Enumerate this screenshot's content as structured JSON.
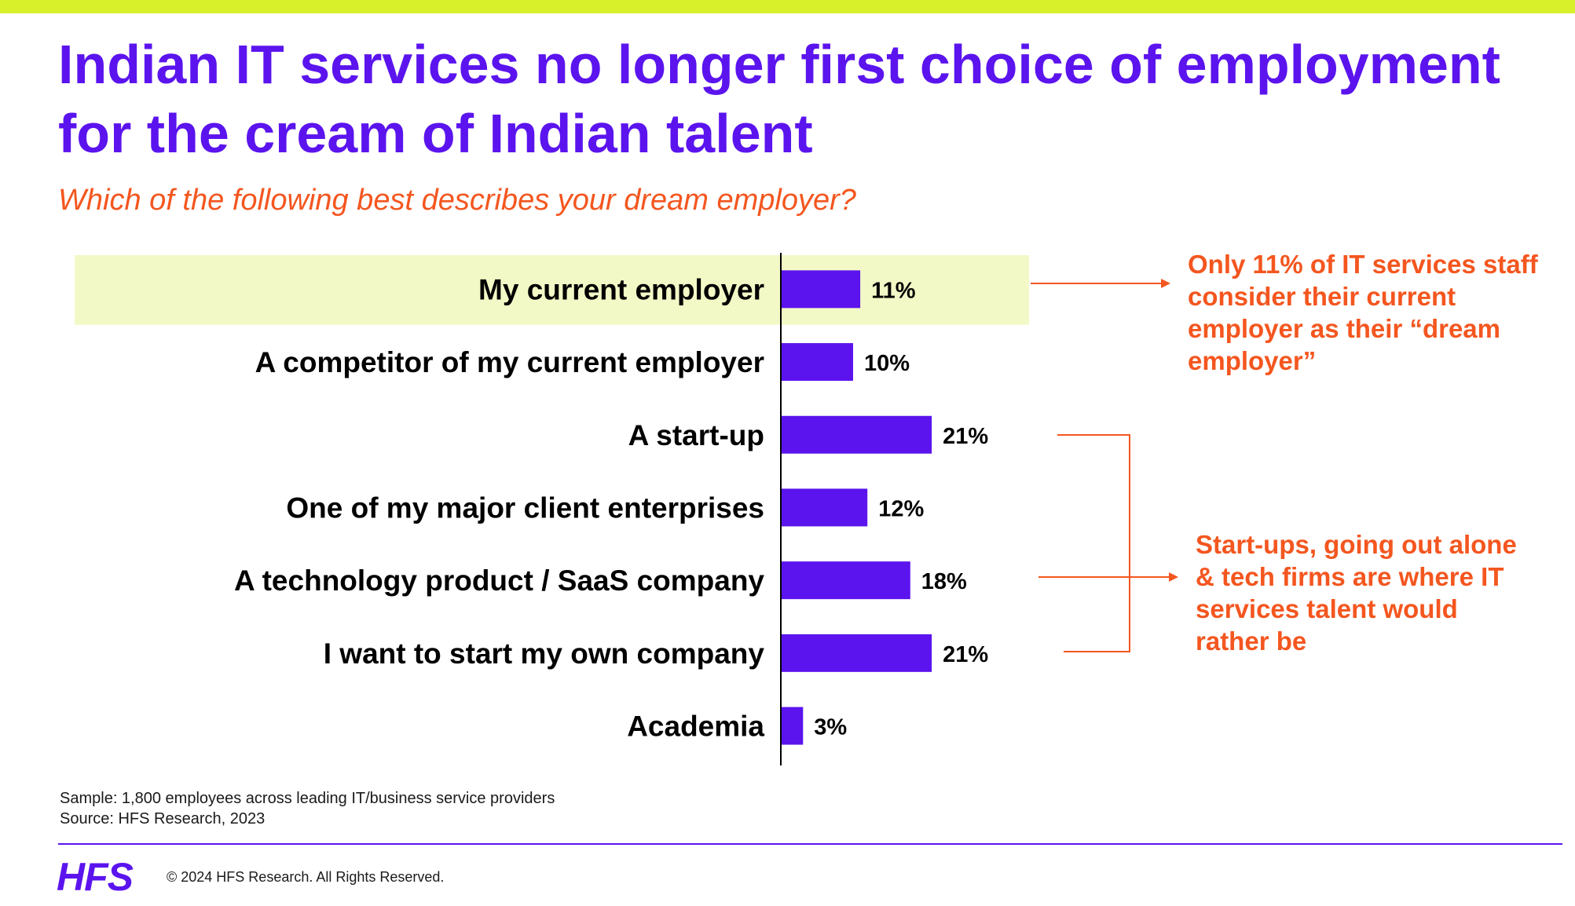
{
  "header": {
    "title": "Indian IT services no longer first choice of employment for the cream of Indian talent",
    "question": "Which of the following best describes your dream employer?"
  },
  "chart_data": {
    "type": "bar",
    "orientation": "horizontal",
    "categories": [
      "My current employer",
      "A competitor of my current employer",
      "A start-up",
      "One of my major client enterprises",
      "A technology product / SaaS company",
      "I want to start my own company",
      "Academia"
    ],
    "values": [
      11,
      10,
      21,
      12,
      18,
      21,
      3
    ],
    "value_labels": [
      "11%",
      "10%",
      "21%",
      "12%",
      "18%",
      "21%",
      "3%"
    ],
    "unit": "%",
    "xlim": [
      0,
      30
    ],
    "highlighted_category": "My current employer",
    "grid": false,
    "legend": "none",
    "bar_color": "#5b14ee",
    "highlight_color": "#f3f9c6"
  },
  "callouts": {
    "first": "Only 11% of IT services staff consider their current employer as their “dream employer”",
    "second": "Start-ups, going out alone & tech firms are where IT services talent would rather be"
  },
  "footer": {
    "sample": "Sample: 1,800 employees across leading IT/business service providers",
    "source": "Source:  HFS Research, 2023",
    "logo": "HFS",
    "copyright": "© 2024 HFS Research. All Rights Reserved."
  },
  "colors": {
    "accent_purple": "#5b14ee",
    "accent_orange": "#f4561f",
    "top_bar": "#d7f02a"
  }
}
